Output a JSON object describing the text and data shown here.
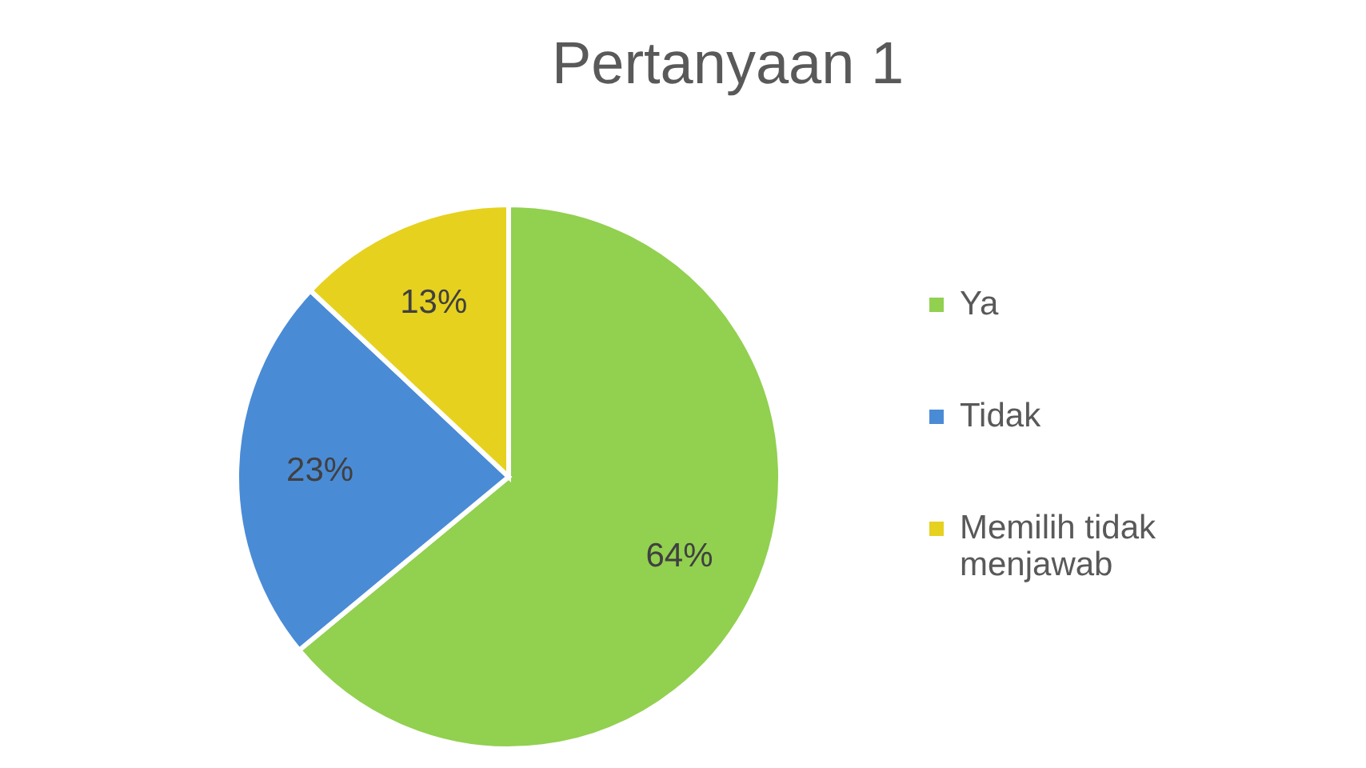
{
  "chart_data": {
    "type": "pie",
    "title": "Pertanyaan 1",
    "categories": [
      "Ya",
      "Tidak",
      "Memilih tidak menjawab"
    ],
    "values": [
      64,
      23,
      13
    ],
    "colors": [
      "#92d050",
      "#4a8bd6",
      "#e6d11f"
    ],
    "value_labels": [
      "64%",
      "23%",
      "13%"
    ],
    "legend": "right"
  }
}
